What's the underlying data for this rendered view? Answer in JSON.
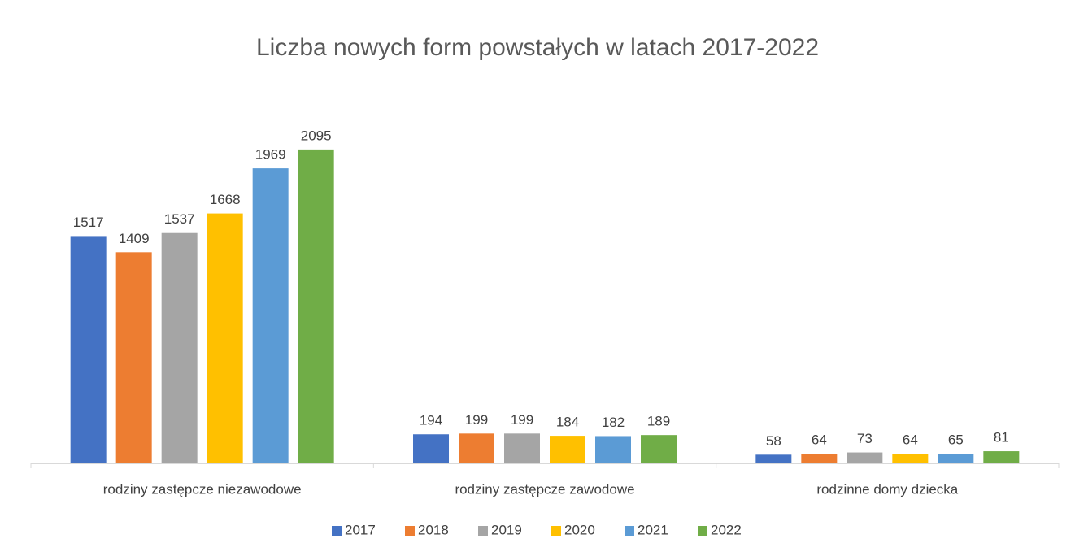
{
  "chart_data": {
    "type": "bar",
    "title": "Liczba nowych form powstałych w latach 2017-2022",
    "categories": [
      "rodziny zastępcze niezawodowe",
      "rodziny zastępcze zawodowe",
      "rodzinne domy dziecka"
    ],
    "series": [
      {
        "name": "2017",
        "color": "#4472c4",
        "values": [
          1517,
          194,
          58
        ]
      },
      {
        "name": "2018",
        "color": "#ed7d31",
        "values": [
          1409,
          199,
          64
        ]
      },
      {
        "name": "2019",
        "color": "#a5a5a5",
        "values": [
          1537,
          199,
          73
        ]
      },
      {
        "name": "2020",
        "color": "#ffc000",
        "values": [
          1668,
          184,
          64
        ]
      },
      {
        "name": "2021",
        "color": "#5b9bd5",
        "values": [
          1969,
          182,
          65
        ]
      },
      {
        "name": "2022",
        "color": "#70ad47",
        "values": [
          2095,
          189,
          81
        ]
      }
    ],
    "legend": "bottom"
  }
}
